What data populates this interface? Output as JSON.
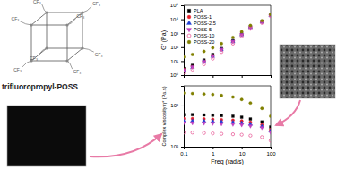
{
  "chart_data": [
    {
      "type": "scatter",
      "ylabel": "G' (Pa)",
      "log": true,
      "legend": "upper left",
      "tick_labels": "y",
      "x": [
        0.1,
        0.2,
        0.5,
        1,
        2,
        5,
        10,
        20,
        50,
        100
      ],
      "xlim": [
        0.1,
        100
      ],
      "xticks": [
        0.1,
        1,
        10,
        100
      ],
      "ylim": [
        1,
        100000
      ],
      "yticks": [
        {
          "value": 1,
          "label": "10⁰"
        },
        {
          "value": 10,
          "label": "10¹"
        },
        {
          "value": 100,
          "label": "10²"
        },
        {
          "value": 1000,
          "label": "10³"
        },
        {
          "value": 10000,
          "label": "10⁴"
        },
        {
          "value": 100000,
          "label": "10⁵"
        }
      ],
      "series": [
        {
          "name": "PLA",
          "color": "#000000",
          "marker": "square",
          "values": [
            3,
            5,
            12,
            30,
            80,
            300,
            900,
            3000,
            7000,
            20000
          ]
        },
        {
          "name": "POSS-1",
          "color": "#e8202a",
          "marker": "circle",
          "values": [
            2.5,
            4,
            10,
            25,
            70,
            260,
            800,
            2700,
            6500,
            19000
          ]
        },
        {
          "name": "POSS-2.5",
          "color": "#1f3fd6",
          "marker": "triangle",
          "values": [
            2,
            3.5,
            9,
            22,
            65,
            250,
            780,
            2600,
            6300,
            18500
          ]
        },
        {
          "name": "POSS-5",
          "color": "#c040c0",
          "marker": "triangle-down",
          "values": [
            2.2,
            3.8,
            9,
            23,
            66,
            250,
            790,
            2600,
            6400,
            18800
          ]
        },
        {
          "name": "POSS-10",
          "color": "#e8609a",
          "marker": "circle-open",
          "values": [
            1.5,
            2.5,
            6,
            15,
            45,
            180,
            600,
            2100,
            5500,
            17000
          ]
        },
        {
          "name": "POSS-20",
          "color": "#808000",
          "marker": "circle",
          "values": [
            20,
            30,
            50,
            90,
            180,
            500,
            1300,
            3600,
            8000,
            22000
          ]
        }
      ]
    },
    {
      "type": "scatter",
      "xlabel": "Freq (rad/s)",
      "ylabel": "Complex viscosity η* (Pa.s)",
      "log": true,
      "x": [
        0.1,
        0.2,
        0.5,
        1,
        2,
        5,
        10,
        20,
        50,
        100
      ],
      "xlim": [
        0.1,
        100
      ],
      "xticks": [
        0.1,
        1,
        10,
        100
      ],
      "ylim": [
        100,
        3000
      ],
      "yticks": [
        {
          "value": 100,
          "label": "10²"
        },
        {
          "value": 1000,
          "label": "10³"
        }
      ],
      "series": [
        {
          "color": "#000000",
          "marker": "square",
          "values": [
            600,
            600,
            590,
            580,
            570,
            550,
            520,
            470,
            400,
            300
          ]
        },
        {
          "color": "#e8202a",
          "marker": "circle",
          "values": [
            480,
            480,
            470,
            460,
            450,
            440,
            420,
            390,
            340,
            260
          ]
        },
        {
          "color": "#1f3fd6",
          "marker": "triangle",
          "values": [
            420,
            420,
            415,
            410,
            400,
            390,
            375,
            350,
            310,
            240
          ]
        },
        {
          "color": "#c040c0",
          "marker": "triangle-down",
          "values": [
            380,
            380,
            375,
            370,
            362,
            352,
            340,
            320,
            290,
            225
          ]
        },
        {
          "color": "#e8609a",
          "marker": "circle-open",
          "values": [
            220,
            220,
            215,
            210,
            205,
            200,
            195,
            185,
            170,
            140
          ]
        },
        {
          "color": "#808000",
          "marker": "circle",
          "values": [
            2000,
            1950,
            1900,
            1850,
            1750,
            1600,
            1400,
            1150,
            850,
            550
          ]
        }
      ]
    }
  ],
  "molecule": {
    "name": "trifluoropropyl-POSS",
    "substituent": "CF₃"
  }
}
